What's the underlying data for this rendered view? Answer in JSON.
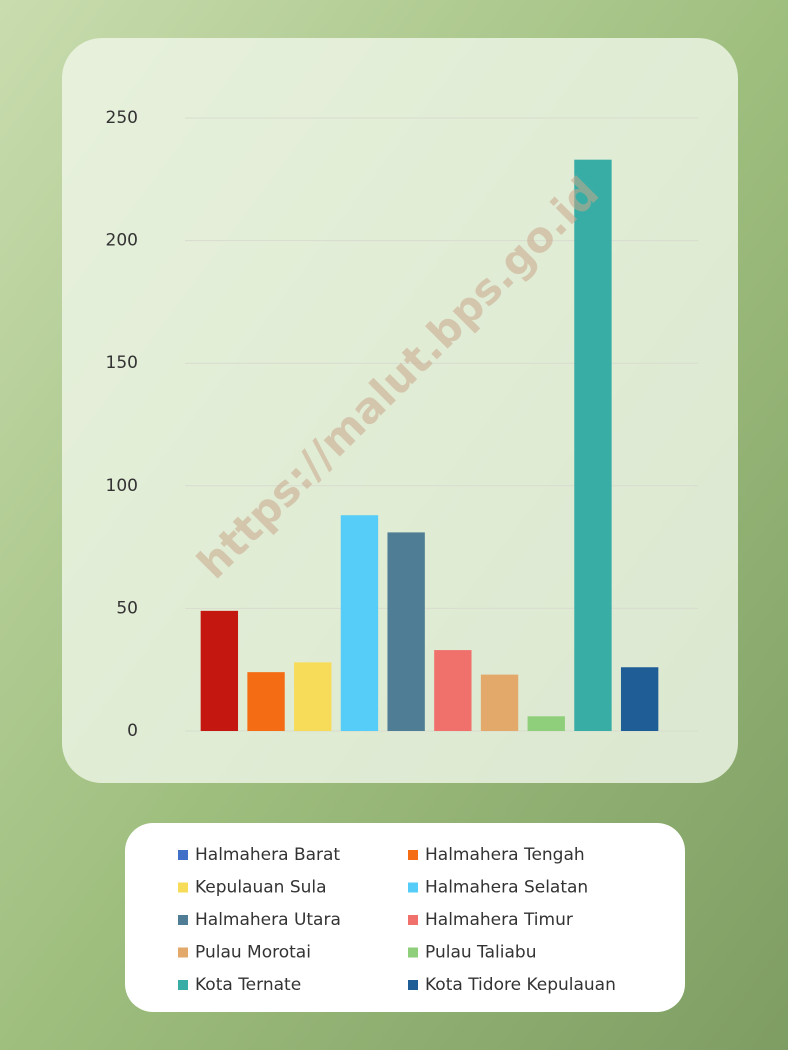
{
  "chart_data": {
    "type": "bar",
    "watermark": "https://malut.bps.go.id",
    "categories": [
      "Halmahera Barat",
      "Halmahera Tengah",
      "Kepulauan Sula",
      "Halmahera Selatan",
      "Halmahera Utara",
      "Halmahera Timur",
      "Pulau Morotai",
      "Pulau Taliabu",
      "Kota Ternate",
      "Kota Tidore Kepulauan"
    ],
    "values": [
      49,
      24,
      28,
      88,
      81,
      33,
      23,
      6,
      233,
      26
    ],
    "colors": [
      "#c3170f",
      "#f46d14",
      "#f7dc5a",
      "#56cdf8",
      "#4f7d95",
      "#f0716c",
      "#e3a96b",
      "#8fce7a",
      "#38ada5",
      "#1e5d95"
    ],
    "legend_colors": [
      "#3f6fc6",
      "#f46d14",
      "#f7dc5a",
      "#56cdf8",
      "#4f7d95",
      "#f0716c",
      "#e3a96b",
      "#8fce7a",
      "#38ada5",
      "#1e5d95"
    ],
    "ylim": [
      0,
      250
    ],
    "yticks": [
      0,
      50,
      100,
      150,
      200,
      250
    ],
    "grid": true
  }
}
